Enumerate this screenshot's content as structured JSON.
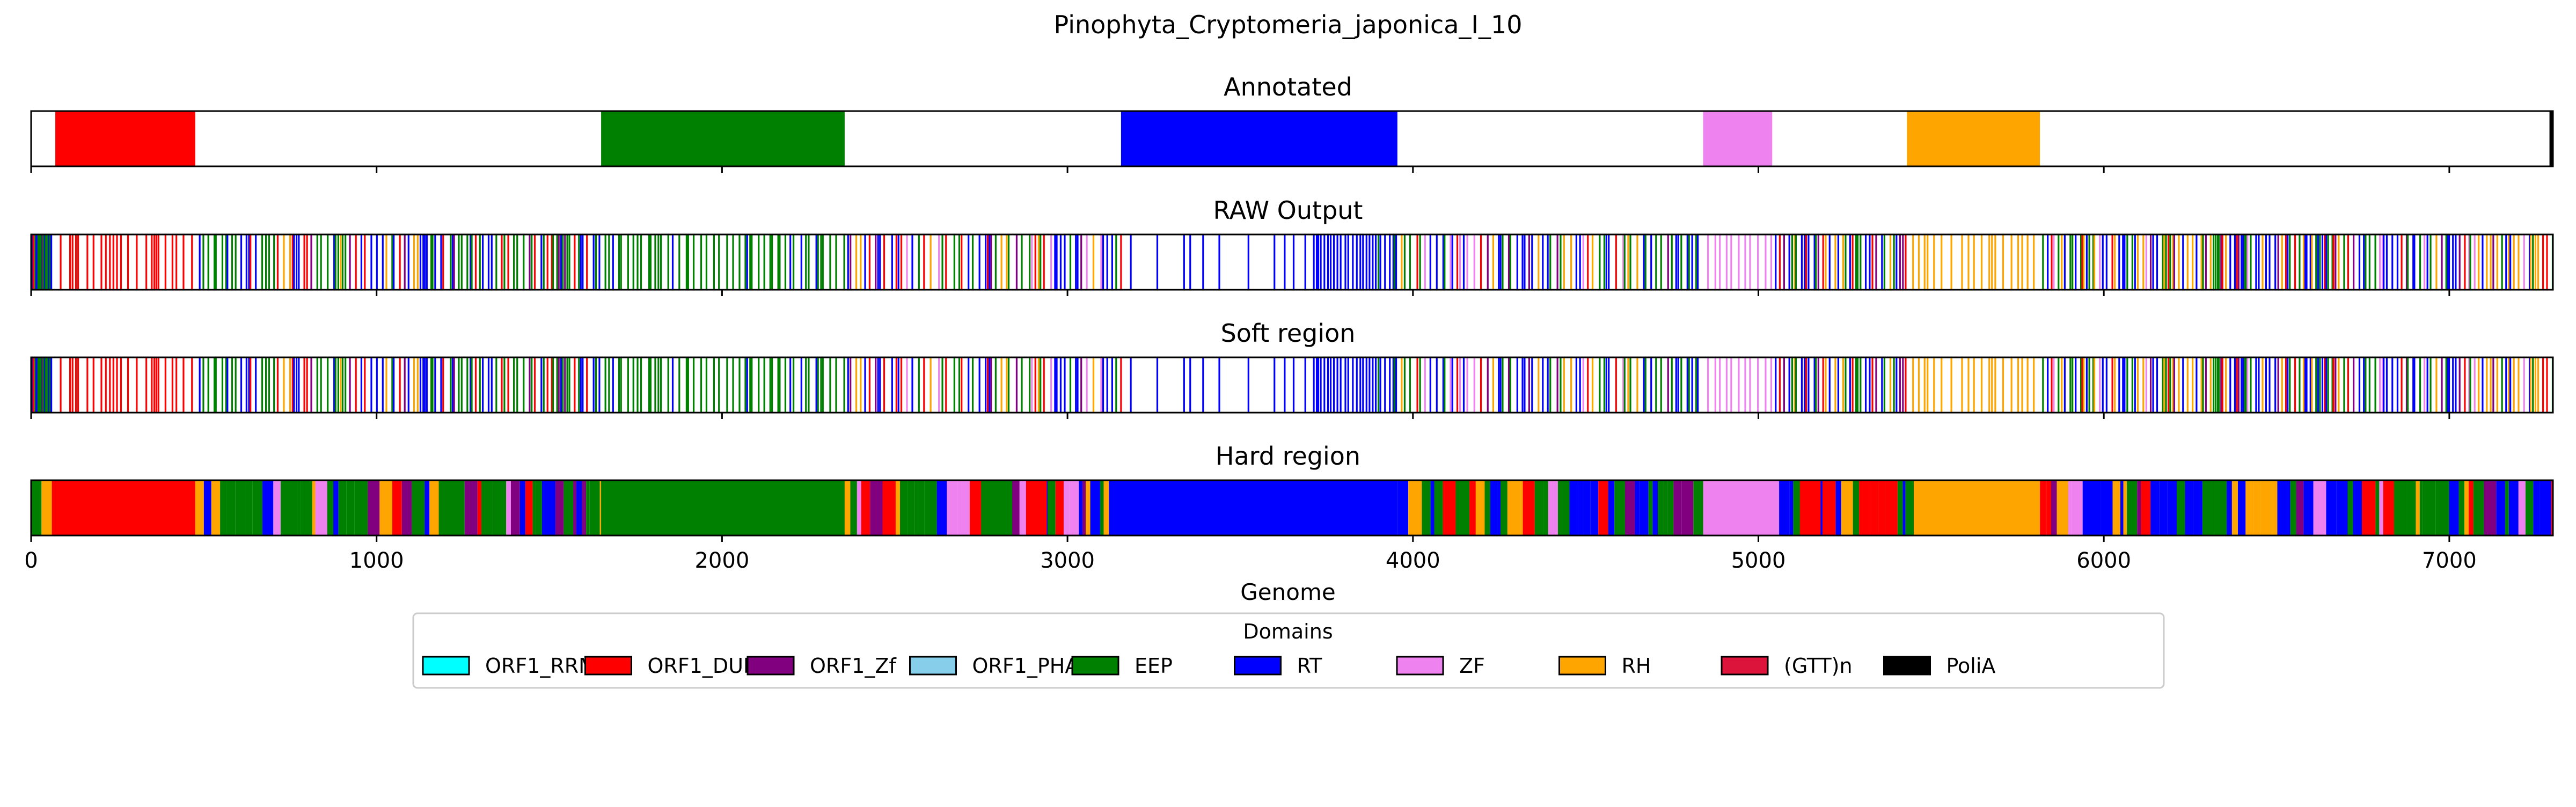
{
  "figure": {
    "title": "Pinophyta_Cryptomeria_japonica_I_10",
    "xlabel": "Genome",
    "legend_title": "Domains"
  },
  "colors": {
    "ORF1_RRM": "#00FFFF",
    "ORF1_DUF": "#FF0000",
    "ORF1_Zf": "#800080",
    "ORF1_PHA": "#87CEEB",
    "EEP": "#008000",
    "RT": "#0000FF",
    "ZF": "#EE82EE",
    "RH": "#FFA500",
    "(GTT)n": "#DC143C",
    "PoliA": "#000000"
  },
  "chart_data": {
    "type": "genome-track",
    "xlim": [
      0,
      7300
    ],
    "xticks": [
      0,
      1000,
      2000,
      3000,
      4000,
      5000,
      6000,
      7000
    ],
    "legend": [
      "ORF1_RRM",
      "ORF1_DUF",
      "ORF1_Zf",
      "ORF1_PHA",
      "EEP",
      "RT",
      "ZF",
      "RH",
      "(GTT)n",
      "PoliA"
    ],
    "panels": [
      {
        "title": "Annotated",
        "style": "blocks",
        "segments": [
          {
            "start": 70,
            "end": 475,
            "domain": "ORF1_DUF"
          },
          {
            "start": 1650,
            "end": 2355,
            "domain": "EEP"
          },
          {
            "start": 3155,
            "end": 3955,
            "domain": "RT"
          },
          {
            "start": 4840,
            "end": 5040,
            "domain": "ZF"
          },
          {
            "start": 5430,
            "end": 5815,
            "domain": "RH"
          },
          {
            "start": 7290,
            "end": 7300,
            "domain": "PoliA"
          }
        ]
      },
      {
        "title": "RAW Output",
        "style": "lines",
        "regions": [
          {
            "start": 0,
            "end": 60,
            "mix": {
              "EEP": 3,
              "RT": 2,
              "ORF1_DUF": 1
            },
            "density": 0.3
          },
          {
            "start": 60,
            "end": 475,
            "mix": {
              "ORF1_DUF": 5
            },
            "density": 0.055
          },
          {
            "start": 475,
            "end": 1200,
            "mix": {
              "EEP": 4,
              "RT": 3,
              "ORF1_DUF": 2,
              "ORF1_Zf": 1,
              "RH": 1
            },
            "density": 0.085
          },
          {
            "start": 1200,
            "end": 1650,
            "mix": {
              "EEP": 4,
              "RT": 3,
              "ORF1_DUF": 1,
              "ORF1_Zf": 1
            },
            "density": 0.085
          },
          {
            "start": 1650,
            "end": 2355,
            "mix": {
              "EEP": 6,
              "RT": 1
            },
            "density": 0.07
          },
          {
            "start": 2355,
            "end": 3155,
            "mix": {
              "EEP": 4,
              "RT": 4,
              "ORF1_DUF": 2,
              "RH": 2,
              "ZF": 1,
              "ORF1_Zf": 1
            },
            "density": 0.07
          },
          {
            "start": 3155,
            "end": 3700,
            "mix": {
              "RT": 5
            },
            "density": 0.02
          },
          {
            "start": 3700,
            "end": 3955,
            "mix": {
              "RT": 6,
              "EEP": 1
            },
            "density": 0.12
          },
          {
            "start": 3955,
            "end": 4840,
            "mix": {
              "RT": 4,
              "EEP": 4,
              "RH": 2,
              "ZF": 1,
              "ORF1_Zf": 1,
              "ORF1_DUF": 1
            },
            "density": 0.08
          },
          {
            "start": 4840,
            "end": 5040,
            "mix": {
              "ZF": 5
            },
            "density": 0.07
          },
          {
            "start": 5040,
            "end": 5430,
            "mix": {
              "EEP": 4,
              "RT": 3,
              "ORF1_DUF": 1,
              "RH": 1,
              "ORF1_Zf": 1
            },
            "density": 0.09
          },
          {
            "start": 5430,
            "end": 5815,
            "mix": {
              "RH": 5
            },
            "density": 0.055
          },
          {
            "start": 5815,
            "end": 7300,
            "mix": {
              "RT": 4,
              "EEP": 4,
              "RH": 3,
              "ZF": 1,
              "ORF1_Zf": 1,
              "ORF1_DUF": 2
            },
            "density": 0.1
          }
        ]
      },
      {
        "title": "Soft region",
        "style": "lines",
        "regions": [
          {
            "start": 0,
            "end": 60,
            "mix": {
              "EEP": 3,
              "RT": 2,
              "ORF1_DUF": 1
            },
            "density": 0.3
          },
          {
            "start": 60,
            "end": 475,
            "mix": {
              "ORF1_DUF": 5
            },
            "density": 0.055
          },
          {
            "start": 475,
            "end": 1200,
            "mix": {
              "EEP": 4,
              "RT": 3,
              "ORF1_DUF": 2,
              "ORF1_Zf": 1,
              "RH": 1
            },
            "density": 0.085
          },
          {
            "start": 1200,
            "end": 1650,
            "mix": {
              "EEP": 4,
              "RT": 3,
              "ORF1_DUF": 1,
              "ORF1_Zf": 1
            },
            "density": 0.085
          },
          {
            "start": 1650,
            "end": 2355,
            "mix": {
              "EEP": 6,
              "RT": 1
            },
            "density": 0.07
          },
          {
            "start": 2355,
            "end": 3155,
            "mix": {
              "EEP": 4,
              "RT": 4,
              "ORF1_DUF": 2,
              "RH": 2,
              "ZF": 1,
              "ORF1_Zf": 1
            },
            "density": 0.07
          },
          {
            "start": 3155,
            "end": 3700,
            "mix": {
              "RT": 5
            },
            "density": 0.02
          },
          {
            "start": 3700,
            "end": 3955,
            "mix": {
              "RT": 6,
              "EEP": 1
            },
            "density": 0.12
          },
          {
            "start": 3955,
            "end": 4840,
            "mix": {
              "RT": 4,
              "EEP": 4,
              "RH": 2,
              "ZF": 1,
              "ORF1_Zf": 1,
              "ORF1_DUF": 1
            },
            "density": 0.08
          },
          {
            "start": 4840,
            "end": 5040,
            "mix": {
              "ZF": 5
            },
            "density": 0.07
          },
          {
            "start": 5040,
            "end": 5430,
            "mix": {
              "EEP": 4,
              "RT": 3,
              "ORF1_DUF": 1,
              "RH": 1,
              "ORF1_Zf": 1
            },
            "density": 0.09
          },
          {
            "start": 5430,
            "end": 5815,
            "mix": {
              "RH": 5
            },
            "density": 0.055
          },
          {
            "start": 5815,
            "end": 7300,
            "mix": {
              "RT": 4,
              "EEP": 4,
              "RH": 3,
              "ZF": 1,
              "ORF1_Zf": 1,
              "ORF1_DUF": 2
            },
            "density": 0.1
          }
        ]
      },
      {
        "title": "Hard region",
        "style": "blocks",
        "segments": [
          {
            "start": 0,
            "end": 30,
            "domain": "EEP"
          },
          {
            "start": 30,
            "end": 60,
            "domain": "RH"
          },
          {
            "start": 60,
            "end": 475,
            "domain": "ORF1_DUF"
          },
          {
            "start": 475,
            "end": 500,
            "domain": "RH"
          },
          {
            "start": 500,
            "end": 2355,
            "domain": "MIX",
            "mix": {
              "EEP": 4,
              "RT": 3,
              "RH": 2,
              "ORF1_DUF": 1,
              "ORF1_Zf": 1,
              "ZF": 1
            }
          },
          {
            "start": 1180,
            "end": 1250,
            "domain": "EEP"
          },
          {
            "start": 1650,
            "end": 2355,
            "domain": "EEP"
          },
          {
            "start": 2355,
            "end": 3120,
            "domain": "MIX",
            "mix": {
              "EEP": 4,
              "RT": 3,
              "RH": 2,
              "ORF1_DUF": 2,
              "ZF": 1,
              "ORF1_Zf": 1
            }
          },
          {
            "start": 2750,
            "end": 2840,
            "domain": "EEP"
          },
          {
            "start": 2880,
            "end": 2940,
            "domain": "ORF1_DUF"
          },
          {
            "start": 3120,
            "end": 3955,
            "domain": "RT"
          },
          {
            "start": 3955,
            "end": 4840,
            "domain": "MIX",
            "mix": {
              "EEP": 4,
              "RT": 3,
              "RH": 2,
              "ZF": 1,
              "ORF1_Zf": 1,
              "ORF1_DUF": 1
            }
          },
          {
            "start": 4840,
            "end": 5060,
            "domain": "ZF"
          },
          {
            "start": 5060,
            "end": 5450,
            "domain": "MIX",
            "mix": {
              "EEP": 4,
              "RT": 3,
              "RH": 2,
              "ORF1_DUF": 2,
              "ORF1_Zf": 1,
              "ZF": 1
            }
          },
          {
            "start": 5120,
            "end": 5180,
            "domain": "ORF1_DUF"
          },
          {
            "start": 5450,
            "end": 5815,
            "domain": "RH"
          },
          {
            "start": 5815,
            "end": 7300,
            "domain": "MIX",
            "mix": {
              "RT": 4,
              "EEP": 4,
              "RH": 3,
              "ZF": 1,
              "ORF1_Zf": 1,
              "ORF1_DUF": 2
            }
          }
        ]
      }
    ]
  }
}
